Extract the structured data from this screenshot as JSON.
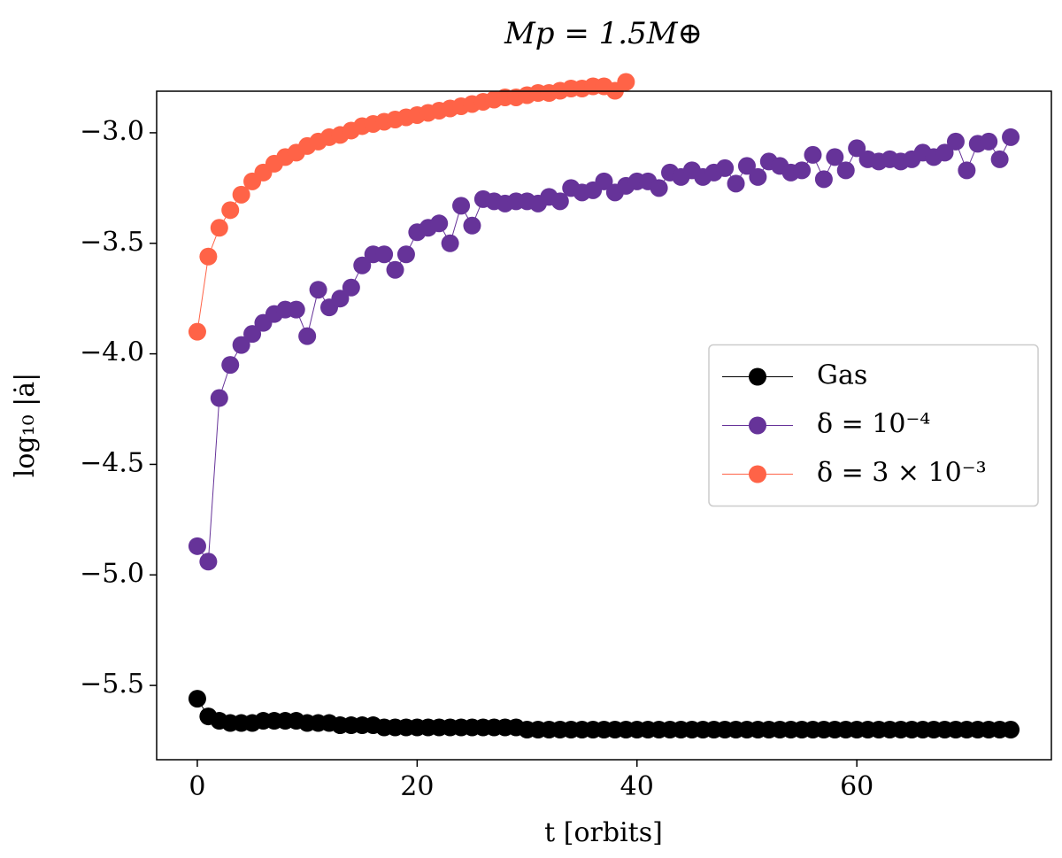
{
  "chart_data": {
    "type": "line",
    "title": "Mp = 1.5M⊕",
    "xlabel": "t [orbits]",
    "ylabel": "log₁₀ |ȧ|",
    "xlim": [
      -3.7,
      77.7
    ],
    "ylim": [
      -5.836,
      -2.812
    ],
    "xticks": [
      0,
      20,
      40,
      60
    ],
    "yticks": [
      {
        "value": -3.0,
        "label": "−3.0"
      },
      {
        "value": -3.5,
        "label": "−3.5"
      },
      {
        "value": -4.0,
        "label": "−4.0"
      },
      {
        "value": -4.5,
        "label": "−4.5"
      },
      {
        "value": -5.0,
        "label": "−5.0"
      },
      {
        "value": -5.5,
        "label": "−5.5"
      }
    ],
    "grid": false,
    "legend": "center right",
    "series": [
      {
        "name": "Gas",
        "color": "#000000",
        "x": [
          0,
          1,
          2,
          3,
          4,
          5,
          6,
          7,
          8,
          9,
          10,
          11,
          12,
          13,
          14,
          15,
          16,
          17,
          18,
          19,
          20,
          21,
          22,
          23,
          24,
          25,
          26,
          27,
          28,
          29,
          30,
          31,
          32,
          33,
          34,
          35,
          36,
          37,
          38,
          39,
          40,
          41,
          42,
          43,
          44,
          45,
          46,
          47,
          48,
          49,
          50,
          51,
          52,
          53,
          54,
          55,
          56,
          57,
          58,
          59,
          60,
          61,
          62,
          63,
          64,
          65,
          66,
          67,
          68,
          69,
          70,
          71,
          72,
          73,
          74
        ],
        "values": [
          -5.56,
          -5.64,
          -5.66,
          -5.67,
          -5.67,
          -5.67,
          -5.66,
          -5.66,
          -5.66,
          -5.66,
          -5.67,
          -5.67,
          -5.67,
          -5.68,
          -5.68,
          -5.68,
          -5.68,
          -5.69,
          -5.69,
          -5.69,
          -5.69,
          -5.69,
          -5.69,
          -5.69,
          -5.69,
          -5.69,
          -5.69,
          -5.69,
          -5.69,
          -5.69,
          -5.7,
          -5.7,
          -5.7,
          -5.7,
          -5.7,
          -5.7,
          -5.7,
          -5.7,
          -5.7,
          -5.7,
          -5.7,
          -5.7,
          -5.7,
          -5.7,
          -5.7,
          -5.7,
          -5.7,
          -5.7,
          -5.7,
          -5.7,
          -5.7,
          -5.7,
          -5.7,
          -5.7,
          -5.7,
          -5.7,
          -5.7,
          -5.7,
          -5.7,
          -5.7,
          -5.7,
          -5.7,
          -5.7,
          -5.7,
          -5.7,
          -5.7,
          -5.7,
          -5.7,
          -5.7,
          -5.7,
          -5.7,
          -5.7,
          -5.7,
          -5.7,
          -5.7
        ]
      },
      {
        "name": "δ = 10⁻⁴",
        "color": "#663399",
        "x": [
          0,
          1,
          2,
          3,
          4,
          5,
          6,
          7,
          8,
          9,
          10,
          11,
          12,
          13,
          14,
          15,
          16,
          17,
          18,
          19,
          20,
          21,
          22,
          23,
          24,
          25,
          26,
          27,
          28,
          29,
          30,
          31,
          32,
          33,
          34,
          35,
          36,
          37,
          38,
          39,
          40,
          41,
          42,
          43,
          44,
          45,
          46,
          47,
          48,
          49,
          50,
          51,
          52,
          53,
          54,
          55,
          56,
          57,
          58,
          59,
          60,
          61,
          62,
          63,
          64,
          65,
          66,
          67,
          68,
          69,
          70,
          71,
          72,
          73,
          74
        ],
        "values": [
          -4.87,
          -4.94,
          -4.2,
          -4.05,
          -3.96,
          -3.91,
          -3.86,
          -3.82,
          -3.8,
          -3.8,
          -3.92,
          -3.71,
          -3.79,
          -3.75,
          -3.7,
          -3.6,
          -3.55,
          -3.55,
          -3.62,
          -3.55,
          -3.45,
          -3.43,
          -3.41,
          -3.5,
          -3.33,
          -3.42,
          -3.3,
          -3.31,
          -3.32,
          -3.31,
          -3.31,
          -3.32,
          -3.29,
          -3.31,
          -3.25,
          -3.27,
          -3.26,
          -3.22,
          -3.27,
          -3.24,
          -3.22,
          -3.22,
          -3.25,
          -3.18,
          -3.2,
          -3.17,
          -3.2,
          -3.18,
          -3.16,
          -3.23,
          -3.15,
          -3.2,
          -3.13,
          -3.15,
          -3.18,
          -3.17,
          -3.1,
          -3.21,
          -3.11,
          -3.17,
          -3.07,
          -3.12,
          -3.13,
          -3.12,
          -3.13,
          -3.12,
          -3.09,
          -3.11,
          -3.09,
          -3.04,
          -3.17,
          -3.05,
          -3.04,
          -3.12,
          -3.02
        ]
      },
      {
        "name": "δ = 3 × 10⁻³",
        "color": "#ff6347",
        "x": [
          0,
          1,
          2,
          3,
          4,
          5,
          6,
          7,
          8,
          9,
          10,
          11,
          12,
          13,
          14,
          15,
          16,
          17,
          18,
          19,
          20,
          21,
          22,
          23,
          24,
          25,
          26,
          27,
          28,
          29,
          30,
          31,
          32,
          33,
          34,
          35,
          36,
          37,
          38,
          39
        ],
        "values": [
          -3.9,
          -3.56,
          -3.43,
          -3.35,
          -3.28,
          -3.22,
          -3.18,
          -3.14,
          -3.11,
          -3.09,
          -3.06,
          -3.04,
          -3.02,
          -3.01,
          -2.99,
          -2.97,
          -2.96,
          -2.95,
          -2.94,
          -2.93,
          -2.92,
          -2.91,
          -2.9,
          -2.89,
          -2.88,
          -2.87,
          -2.86,
          -2.85,
          -2.84,
          -2.84,
          -2.83,
          -2.82,
          -2.82,
          -2.81,
          -2.8,
          -2.8,
          -2.79,
          -2.79,
          -2.81,
          -2.77
        ]
      }
    ]
  }
}
